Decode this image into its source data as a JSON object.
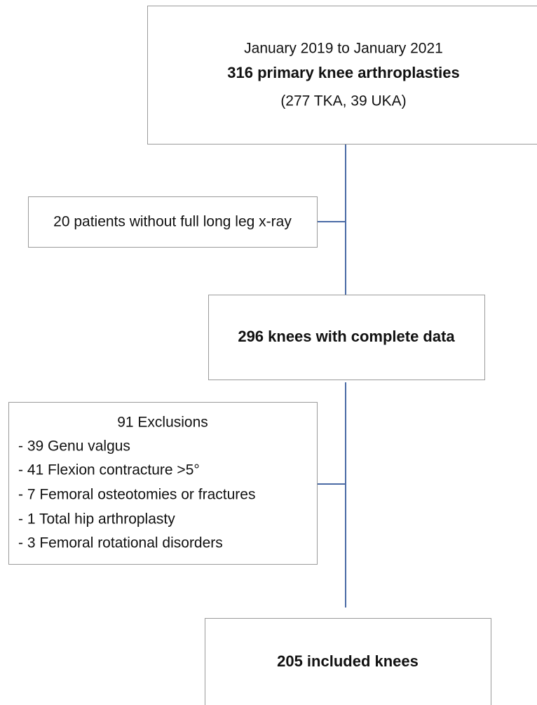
{
  "nodes": [
    {
      "lines": [
        "January 2019 to January 2021",
        "316 primary knee arthroplasties",
        "(277 TKA, 39 UKA)"
      ]
    },
    {
      "lines": [
        "20 patients without full long leg x-ray"
      ]
    },
    {
      "lines": [
        "296 knees with complete data"
      ]
    },
    {
      "lines": [
        "91 Exclusions",
        "- 39 Genu valgus",
        "- 41 Flexion contracture >5°",
        "- 7 Femoral osteotomies or fractures",
        "- 1 Total hip arthroplasty",
        "- 3 Femoral rotational disorders"
      ]
    },
    {
      "lines": [
        "205 included knees"
      ]
    }
  ]
}
